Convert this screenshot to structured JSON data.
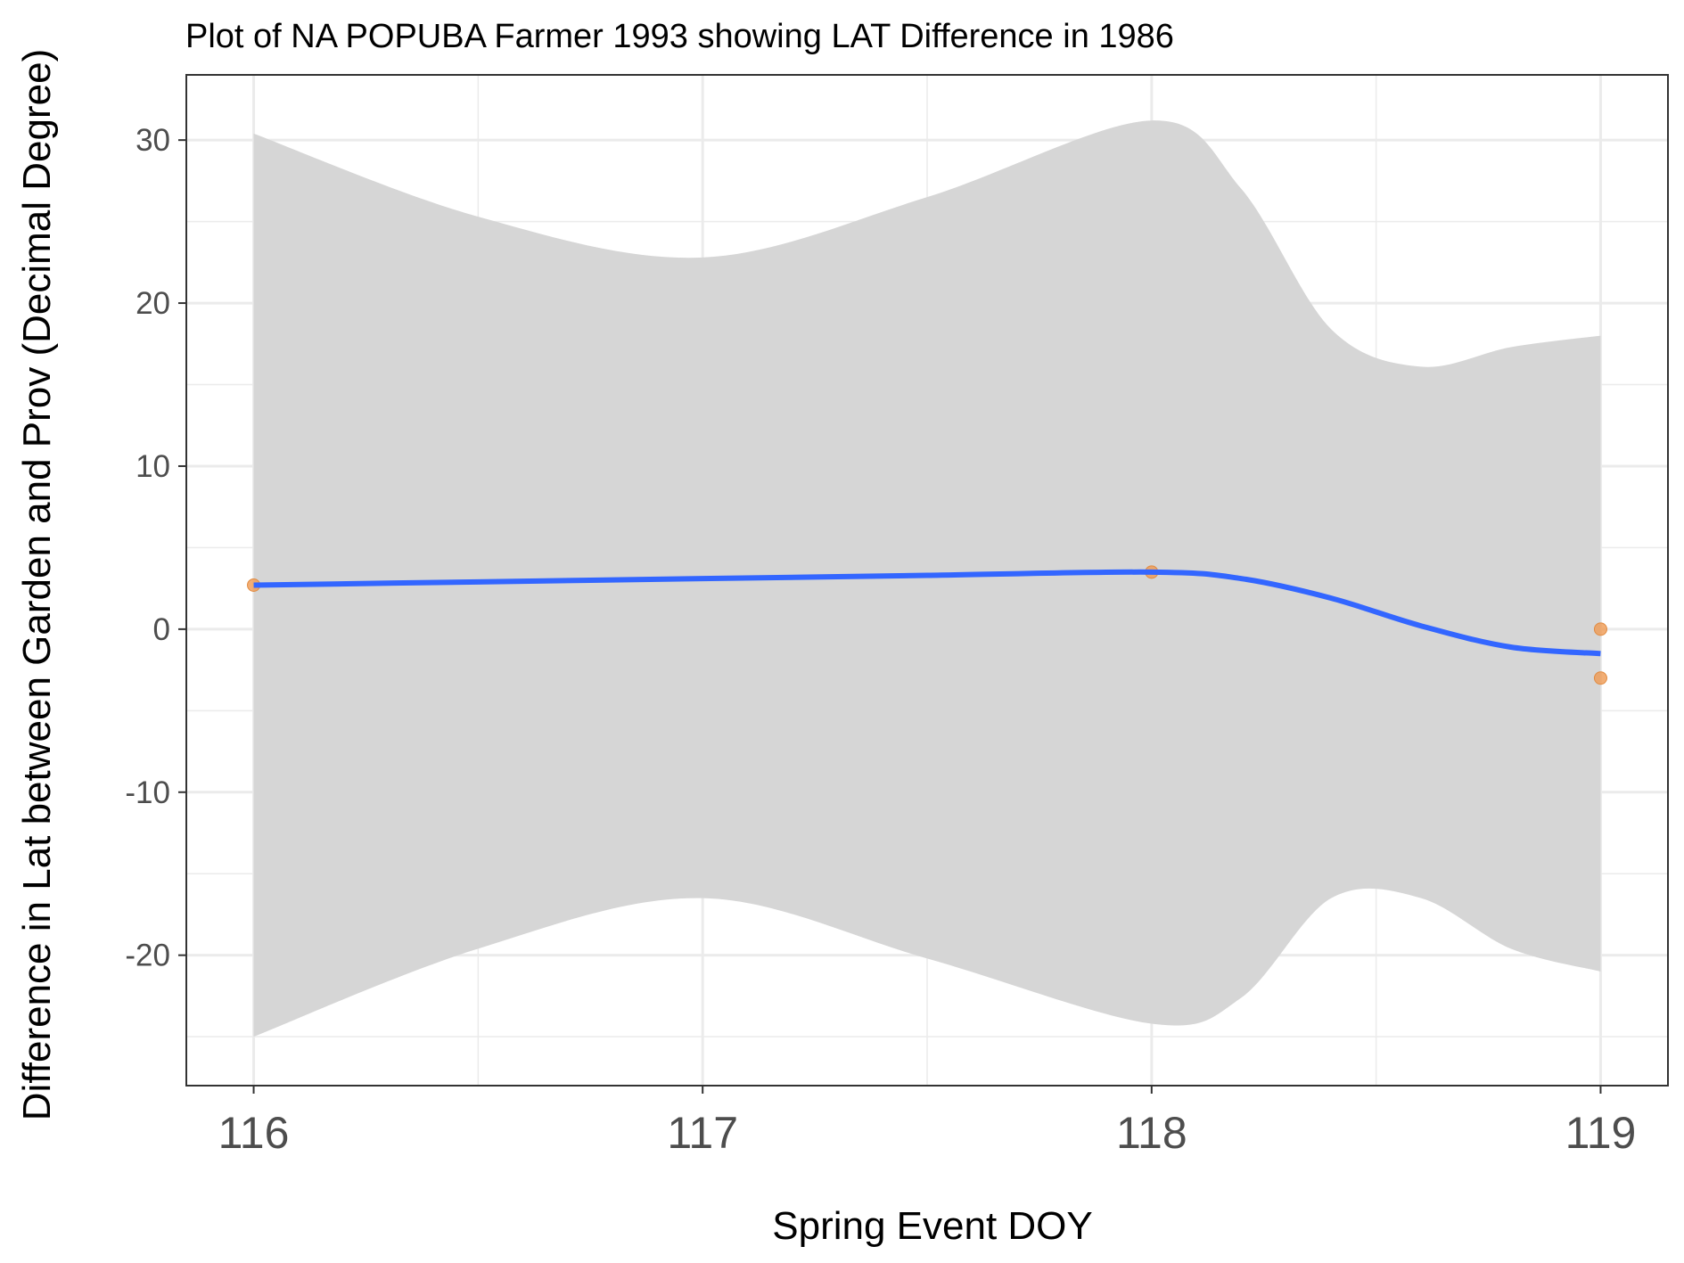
{
  "chart_data": {
    "type": "scatter",
    "title": "Plot of NA POPUBA Farmer 1993 showing LAT Difference in 1986",
    "xlabel": "Spring Event DOY",
    "ylabel": "Difference in Lat between Garden and Prov (Decimal Degree)",
    "xlim": [
      115.85,
      119.15
    ],
    "ylim": [
      -28,
      34
    ],
    "x_ticks": [
      116,
      117,
      118,
      119
    ],
    "x_tick_labels": [
      "116",
      "117",
      "118",
      "119"
    ],
    "y_ticks": [
      -20,
      -10,
      0,
      10,
      20,
      30
    ],
    "y_tick_labels": [
      "-20",
      "-10",
      "0",
      "10",
      "20",
      "30"
    ],
    "grid": true,
    "legend": "none",
    "points": {
      "x": [
        116,
        118,
        119,
        119
      ],
      "y": [
        2.7,
        3.5,
        0,
        -3
      ]
    },
    "smooth": {
      "x": [
        116,
        116.5,
        117,
        117.5,
        118,
        118.2,
        118.4,
        118.6,
        118.8,
        119
      ],
      "y": [
        2.7,
        2.9,
        3.1,
        3.3,
        3.5,
        3.1,
        1.9,
        0.2,
        -1.1,
        -1.5
      ],
      "upper": [
        30.4,
        25.3,
        22.8,
        26.5,
        31.2,
        27.0,
        18.4,
        16.1,
        17.3,
        18.0
      ],
      "lower": [
        -25.0,
        -19.6,
        -16.5,
        -20.2,
        -24.2,
        -22.6,
        -16.5,
        -16.5,
        -19.6,
        -21.0
      ]
    },
    "colors": {
      "line": "#3366ff",
      "ribbon": "#d6d6d6",
      "points": "#ef9a52",
      "grid": "#ebebeb",
      "panel_border": "#333333",
      "tick_text": "#4d4d4d"
    }
  }
}
